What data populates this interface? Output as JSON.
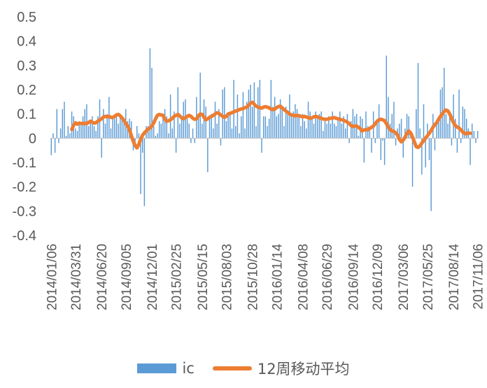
{
  "colors": {
    "bar": "#5B9BD5",
    "line": "#ED7D31",
    "axis": "#BFBFBF",
    "text": "#595959"
  },
  "legend": {
    "bar_label": "ic",
    "line_label": "12周移动平均"
  },
  "chart_data": {
    "type": "bar",
    "ylim": [
      -0.4,
      0.5
    ],
    "yticks": [
      "0.5",
      "0.4",
      "0.3",
      "0.2",
      "0.1",
      "0",
      "-0.1",
      "-0.2",
      "-0.3",
      "-0.4"
    ],
    "xtick_labels": [
      "2014/01/06",
      "2014/03/31",
      "2014/06/20",
      "2014/09/05",
      "2014/12/01",
      "2015/02/25",
      "2015/05/15",
      "2015/08/03",
      "2015/10/28",
      "2016/01/14",
      "2016/04/08",
      "2016/06/29",
      "2016/09/14",
      "2016/12/09",
      "2017/03/06",
      "2017/05/25",
      "2017/08/14",
      "2017/11/06"
    ],
    "series": [
      {
        "name": "ic",
        "type": "bar",
        "values": [
          -0.07,
          0.02,
          -0.06,
          0.12,
          -0.02,
          0.04,
          0.12,
          0.15,
          0.01,
          0.05,
          0.02,
          0.11,
          0.09,
          0.04,
          0.03,
          0.07,
          0.06,
          0.09,
          0.12,
          0.14,
          0.05,
          0.07,
          0.09,
          0.05,
          0.03,
          0.09,
          0.16,
          -0.08,
          0.12,
          0.06,
          0.1,
          0.17,
          0.04,
          0.09,
          0.08,
          0.1,
          0.06,
          0.1,
          0.09,
          0.06,
          0.12,
          0.07,
          0.08,
          0.07,
          -0.05,
          -0.04,
          0.05,
          0.02,
          -0.23,
          -0.06,
          -0.28,
          0.05,
          0.05,
          0.37,
          0.29,
          0.05,
          0.01,
          0.02,
          0.07,
          0.06,
          0.1,
          0.12,
          0.09,
          0.02,
          0.18,
          0.04,
          0.11,
          -0.06,
          0.21,
          0.06,
          0.08,
          0.15,
          0.16,
          0.08,
          0.06,
          -0.02,
          0.04,
          -0.02,
          0.17,
          0.1,
          0.27,
          0.06,
          0.16,
          0.13,
          -0.14,
          0.08,
          0.1,
          0.04,
          0.15,
          0.06,
          0.12,
          -0.03,
          0.2,
          0.21,
          0.07,
          0.1,
          0.11,
          0.04,
          0.24,
          0.05,
          0.18,
          0.02,
          0.09,
          0.19,
          0.04,
          0.15,
          0.2,
          0.22,
          0.13,
          0.23,
          0.05,
          0.21,
          0.24,
          -0.06,
          0.09,
          0.09,
          0.05,
          0.08,
          0.24,
          0.13,
          0.17,
          0.09,
          0.1,
          0.16,
          0.12,
          0.05,
          0.13,
          0.1,
          0.18,
          0.09,
          0.11,
          0.14,
          0.12,
          0.09,
          0.05,
          0.1,
          0.07,
          0.04,
          0.15,
          0.11,
          0.09,
          0.06,
          0.11,
          0.09,
          0.1,
          0.11,
          0.03,
          0.08,
          0.06,
          0.09,
          0.06,
          0.11,
          0.06,
          0.05,
          0.08,
          0.11,
          0.06,
          0.09,
          0.04,
          0.1,
          -0.02,
          0.07,
          0.12,
          0.09,
          0.1,
          0.01,
          0.09,
          0.08,
          -0.1,
          0.11,
          0.05,
          0.03,
          -0.06,
          0.11,
          -0.02,
          0.06,
          0.14,
          -0.09,
          -0.01,
          -0.11,
          0.34,
          0.17,
          0.06,
          0.1,
          0.15,
          -0.03,
          0.04,
          0.06,
          0.08,
          -0.08,
          0.04,
          0.1,
          0.09,
          0.03,
          -0.2,
          -0.03,
          0.12,
          0.31,
          0.04,
          -0.15,
          0.14,
          -0.12,
          0.06,
          -0.09,
          -0.3,
          0.1,
          -0.05,
          0.07,
          0.09,
          0.2,
          0.21,
          0.29,
          0.1,
          0.06,
          0.11,
          -0.03,
          0.18,
          0.08,
          -0.06,
          0.2,
          -0.02,
          0.13,
          0.12,
          0.08,
          0.04,
          -0.11,
          0.06,
          0.03,
          -0.02,
          0.03
        ],
        "color": "#5B9BD5"
      },
      {
        "name": "12周移动平均",
        "type": "line",
        "start_index": 11,
        "values": [
          0.036,
          0.054,
          0.063,
          0.058,
          0.062,
          0.061,
          0.06,
          0.062,
          0.06,
          0.065,
          0.07,
          0.066,
          0.062,
          0.064,
          0.07,
          0.075,
          0.08,
          0.087,
          0.09,
          0.088,
          0.09,
          0.086,
          0.085,
          0.09,
          0.096,
          0.098,
          0.092,
          0.084,
          0.074,
          0.06,
          0.05,
          0.035,
          0.01,
          -0.012,
          -0.03,
          -0.04,
          -0.025,
          -0.005,
          0.012,
          0.022,
          0.03,
          0.038,
          0.042,
          0.05,
          0.063,
          0.08,
          0.094,
          0.098,
          0.096,
          0.094,
          0.078,
          0.07,
          0.072,
          0.076,
          0.082,
          0.09,
          0.094,
          0.098,
          0.092,
          0.084,
          0.08,
          0.084,
          0.09,
          0.094,
          0.09,
          0.082,
          0.078,
          0.08,
          0.092,
          0.1,
          0.098,
          0.086,
          0.076,
          0.08,
          0.086,
          0.09,
          0.094,
          0.1,
          0.105,
          0.102,
          0.096,
          0.09,
          0.086,
          0.09,
          0.1,
          0.102,
          0.105,
          0.108,
          0.112,
          0.114,
          0.118,
          0.12,
          0.122,
          0.126,
          0.128,
          0.136,
          0.145,
          0.148,
          0.14,
          0.132,
          0.128,
          0.126,
          0.124,
          0.128,
          0.13,
          0.128,
          0.125,
          0.12,
          0.118,
          0.12,
          0.126,
          0.13,
          0.132,
          0.125,
          0.118,
          0.112,
          0.106,
          0.1,
          0.096,
          0.094,
          0.092,
          0.094,
          0.093,
          0.09,
          0.088,
          0.09,
          0.087,
          0.085,
          0.082,
          0.084,
          0.088,
          0.09,
          0.088,
          0.085,
          0.082,
          0.079,
          0.078,
          0.078,
          0.08,
          0.082,
          0.083,
          0.085,
          0.082,
          0.08,
          0.078,
          0.076,
          0.074,
          0.07,
          0.066,
          0.06,
          0.052,
          0.048,
          0.05,
          0.05,
          0.045,
          0.038,
          0.03,
          0.034,
          0.036,
          0.034,
          0.04,
          0.045,
          0.05,
          0.06,
          0.07,
          0.076,
          0.078,
          0.076,
          0.072,
          0.06,
          0.045,
          0.036,
          0.03,
          0.028,
          0.022,
          0.012,
          -0.005,
          -0.015,
          -0.008,
          0.005,
          0.02,
          0.03,
          0.022,
          0.005,
          -0.015,
          -0.035,
          -0.038,
          -0.032,
          -0.02,
          -0.01,
          0.0,
          0.01,
          0.02,
          0.032,
          0.045,
          0.056,
          0.064,
          0.078,
          0.09,
          0.1,
          0.11,
          0.116,
          0.112,
          0.1,
          0.082,
          0.064,
          0.052,
          0.046,
          0.042,
          0.034,
          0.025,
          0.02,
          0.018,
          0.022,
          0.02
        ],
        "color": "#ED7D31"
      }
    ]
  }
}
